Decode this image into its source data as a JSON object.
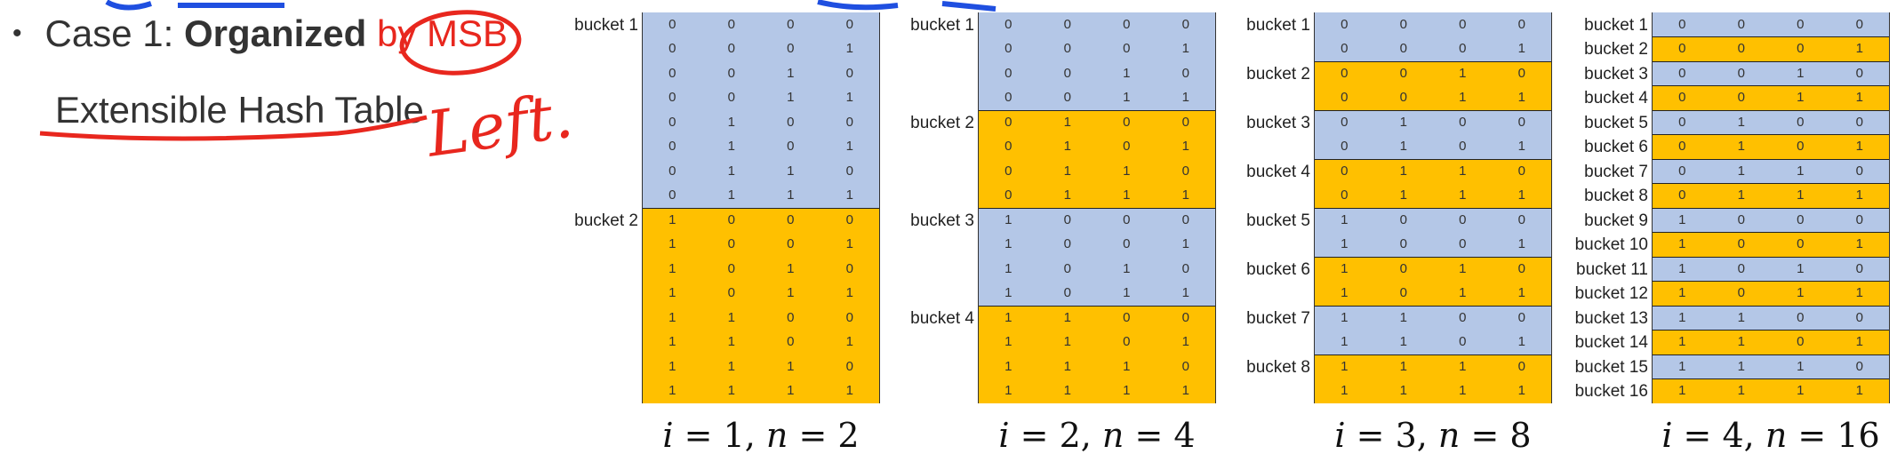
{
  "slide": {
    "bullet_prefix": "Case 1: ",
    "bullet_bold": "Organized",
    "bullet_by": " by",
    "bullet_msb": " MSB",
    "subline": "Extensible Hash Table",
    "annotation_word": "Left."
  },
  "colors": {
    "blue": "#b4c7e7",
    "orange": "#ffc000",
    "annotation": "#e8271e",
    "pen_blue": "#1f4fe0"
  },
  "diagrams": [
    {
      "caption_i": "i",
      "caption_eq1": " = ",
      "caption_iv": "1",
      "caption_comma": ", ",
      "caption_n": "n",
      "caption_eq2": " = ",
      "caption_nv": "2",
      "buckets": [
        {
          "label": "bucket 1",
          "color": "blue",
          "rows": [
            "0000",
            "0001",
            "0010",
            "0011",
            "0100",
            "0101",
            "0110",
            "0111"
          ]
        },
        {
          "label": "bucket 2",
          "color": "orange",
          "rows": [
            "1000",
            "1001",
            "1010",
            "1011",
            "1100",
            "1101",
            "1110",
            "1111"
          ]
        }
      ]
    },
    {
      "caption_i": "i",
      "caption_eq1": " = ",
      "caption_iv": "2",
      "caption_comma": ", ",
      "caption_n": "n",
      "caption_eq2": " = ",
      "caption_nv": "4",
      "buckets": [
        {
          "label": "bucket 1",
          "color": "blue",
          "rows": [
            "0000",
            "0001",
            "0010",
            "0011"
          ]
        },
        {
          "label": "bucket 2",
          "color": "orange",
          "rows": [
            "0100",
            "0101",
            "0110",
            "0111"
          ]
        },
        {
          "label": "bucket 3",
          "color": "blue",
          "rows": [
            "1000",
            "1001",
            "1010",
            "1011"
          ]
        },
        {
          "label": "bucket 4",
          "color": "orange",
          "rows": [
            "1100",
            "1101",
            "1110",
            "1111"
          ]
        }
      ]
    },
    {
      "caption_i": "i",
      "caption_eq1": " = ",
      "caption_iv": "3",
      "caption_comma": ", ",
      "caption_n": "n",
      "caption_eq2": " = ",
      "caption_nv": "8",
      "buckets": [
        {
          "label": "bucket 1",
          "color": "blue",
          "rows": [
            "0000",
            "0001"
          ]
        },
        {
          "label": "bucket 2",
          "color": "orange",
          "rows": [
            "0010",
            "0011"
          ]
        },
        {
          "label": "bucket 3",
          "color": "blue",
          "rows": [
            "0100",
            "0101"
          ]
        },
        {
          "label": "bucket 4",
          "color": "orange",
          "rows": [
            "0110",
            "0111"
          ]
        },
        {
          "label": "bucket 5",
          "color": "blue",
          "rows": [
            "1000",
            "1001"
          ]
        },
        {
          "label": "bucket 6",
          "color": "orange",
          "rows": [
            "1010",
            "1011"
          ]
        },
        {
          "label": "bucket 7",
          "color": "blue",
          "rows": [
            "1100",
            "1101"
          ]
        },
        {
          "label": "bucket 8",
          "color": "orange",
          "rows": [
            "1110",
            "1111"
          ]
        }
      ]
    },
    {
      "caption_i": "i",
      "caption_eq1": " = ",
      "caption_iv": "4",
      "caption_comma": ", ",
      "caption_n": "n",
      "caption_eq2": " = ",
      "caption_nv": "16",
      "buckets": [
        {
          "label": "bucket 1",
          "color": "blue",
          "rows": [
            "0000"
          ]
        },
        {
          "label": "bucket 2",
          "color": "orange",
          "rows": [
            "0001"
          ]
        },
        {
          "label": "bucket 3",
          "color": "blue",
          "rows": [
            "0010"
          ]
        },
        {
          "label": "bucket 4",
          "color": "orange",
          "rows": [
            "0011"
          ]
        },
        {
          "label": "bucket 5",
          "color": "blue",
          "rows": [
            "0100"
          ]
        },
        {
          "label": "bucket 6",
          "color": "orange",
          "rows": [
            "0101"
          ]
        },
        {
          "label": "bucket 7",
          "color": "blue",
          "rows": [
            "0110"
          ]
        },
        {
          "label": "bucket 8",
          "color": "orange",
          "rows": [
            "0111"
          ]
        },
        {
          "label": "bucket 9",
          "color": "blue",
          "rows": [
            "1000"
          ]
        },
        {
          "label": "bucket 10",
          "color": "orange",
          "rows": [
            "1001"
          ]
        },
        {
          "label": "bucket 11",
          "color": "blue",
          "rows": [
            "1010"
          ]
        },
        {
          "label": "bucket 12",
          "color": "orange",
          "rows": [
            "1011"
          ]
        },
        {
          "label": "bucket 13",
          "color": "blue",
          "rows": [
            "1100"
          ]
        },
        {
          "label": "bucket 14",
          "color": "orange",
          "rows": [
            "1101"
          ]
        },
        {
          "label": "bucket 15",
          "color": "blue",
          "rows": [
            "1110"
          ]
        },
        {
          "label": "bucket 16",
          "color": "orange",
          "rows": [
            "1111"
          ]
        }
      ]
    }
  ]
}
